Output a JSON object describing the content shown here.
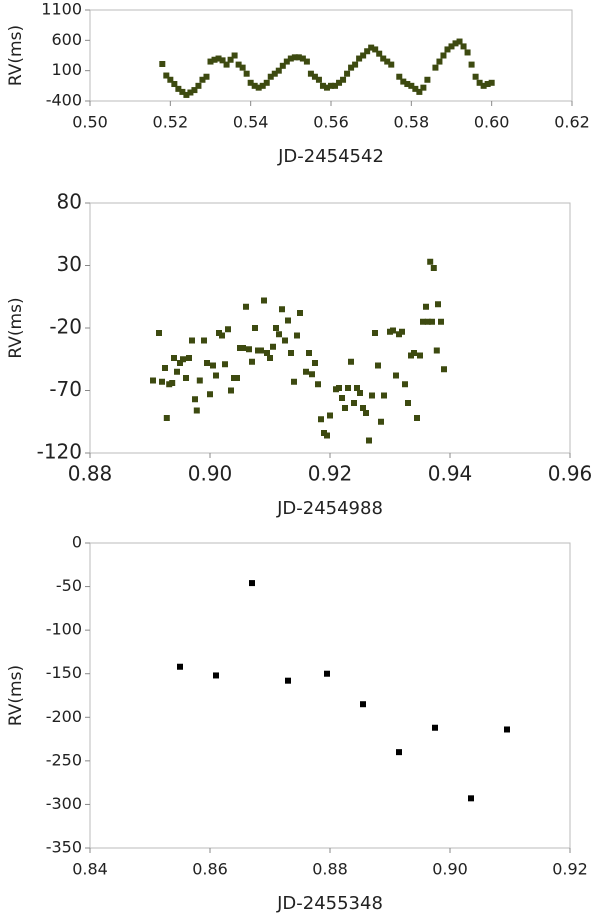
{
  "chart_data": [
    {
      "type": "scatter",
      "x_label": "JD-2454542",
      "y_label": "RV(ms)",
      "color": "#3d4a10",
      "xlim": [
        0.5,
        0.62
      ],
      "ylim": [
        -400,
        1100
      ],
      "xticks": [
        {
          "value": 0.5,
          "label": "0.50"
        },
        {
          "value": 0.52,
          "label": "0.52"
        },
        {
          "value": 0.54,
          "label": "0.54"
        },
        {
          "value": 0.56,
          "label": "0.56"
        },
        {
          "value": 0.58,
          "label": "0.58"
        },
        {
          "value": 0.6,
          "label": "0.60"
        },
        {
          "value": 0.62,
          "label": "0.62"
        }
      ],
      "yticks": [
        -400,
        100,
        600,
        1100
      ],
      "x": [
        0.518,
        0.519,
        0.52,
        0.521,
        0.522,
        0.523,
        0.524,
        0.525,
        0.526,
        0.527,
        0.528,
        0.529,
        0.53,
        0.531,
        0.532,
        0.533,
        0.534,
        0.535,
        0.536,
        0.537,
        0.538,
        0.539,
        0.54,
        0.541,
        0.542,
        0.543,
        0.544,
        0.545,
        0.546,
        0.547,
        0.548,
        0.549,
        0.55,
        0.551,
        0.552,
        0.553,
        0.554,
        0.555,
        0.556,
        0.557,
        0.558,
        0.559,
        0.56,
        0.561,
        0.562,
        0.563,
        0.564,
        0.565,
        0.566,
        0.567,
        0.568,
        0.569,
        0.57,
        0.571,
        0.572,
        0.573,
        0.574,
        0.575,
        0.577,
        0.578,
        0.579,
        0.58,
        0.581,
        0.582,
        0.583,
        0.584,
        0.586,
        0.587,
        0.588,
        0.589,
        0.59,
        0.591,
        0.592,
        0.593,
        0.594,
        0.595,
        0.596,
        0.597,
        0.598,
        0.599,
        0.6
      ],
      "values": [
        210,
        20,
        -50,
        -120,
        -200,
        -250,
        -300,
        -260,
        -220,
        -150,
        -50,
        0,
        250,
        280,
        300,
        270,
        200,
        280,
        350,
        200,
        150,
        50,
        -100,
        -150,
        -180,
        -150,
        -100,
        0,
        50,
        100,
        180,
        250,
        300,
        320,
        320,
        300,
        250,
        50,
        0,
        -50,
        -150,
        -180,
        -150,
        -150,
        -100,
        -50,
        50,
        150,
        200,
        300,
        350,
        420,
        480,
        450,
        380,
        300,
        250,
        200,
        0,
        -80,
        -120,
        -150,
        -200,
        -250,
        -180,
        -50,
        150,
        250,
        350,
        450,
        500,
        550,
        580,
        500,
        400,
        200,
        0,
        -100,
        -150,
        -120,
        -100
      ]
    },
    {
      "type": "scatter",
      "x_label": "JD-2454988",
      "y_label": "RV(ms)",
      "color": "#3d4a10",
      "xlim": [
        0.88,
        0.96
      ],
      "ylim": [
        -120,
        80
      ],
      "xticks": [
        {
          "value": 0.88,
          "label": "0.88"
        },
        {
          "value": 0.9,
          "label": "0.90"
        },
        {
          "value": 0.92,
          "label": "0.92"
        },
        {
          "value": 0.94,
          "label": "0.94"
        },
        {
          "value": 0.96,
          "label": "0.96"
        }
      ],
      "yticks": [
        -120,
        -70,
        -20,
        30,
        80
      ],
      "x": [
        0.8905,
        0.8915,
        0.892,
        0.8925,
        0.8928,
        0.8932,
        0.8937,
        0.894,
        0.8945,
        0.895,
        0.8955,
        0.896,
        0.8965,
        0.897,
        0.8975,
        0.8978,
        0.8983,
        0.899,
        0.8995,
        0.9,
        0.9005,
        0.901,
        0.9015,
        0.902,
        0.9025,
        0.903,
        0.9035,
        0.904,
        0.9045,
        0.905,
        0.9055,
        0.906,
        0.9065,
        0.907,
        0.9075,
        0.908,
        0.9085,
        0.909,
        0.9095,
        0.91,
        0.9105,
        0.911,
        0.9115,
        0.912,
        0.9125,
        0.913,
        0.9135,
        0.914,
        0.9145,
        0.915,
        0.916,
        0.9165,
        0.917,
        0.9175,
        0.918,
        0.9185,
        0.919,
        0.9195,
        0.92,
        0.921,
        0.9215,
        0.922,
        0.9225,
        0.923,
        0.9235,
        0.924,
        0.9245,
        0.925,
        0.9255,
        0.926,
        0.9265,
        0.927,
        0.9275,
        0.928,
        0.9285,
        0.929,
        0.93,
        0.9305,
        0.931,
        0.9315,
        0.932,
        0.9325,
        0.933,
        0.9335,
        0.934,
        0.9345,
        0.935,
        0.9355,
        0.936,
        0.9363,
        0.9367,
        0.937,
        0.9373,
        0.9378,
        0.938,
        0.9385,
        0.939
      ],
      "values": [
        -62,
        -24,
        -63,
        -52,
        -92,
        -65,
        -64,
        -44,
        -55,
        -48,
        -45,
        -60,
        -44,
        -30,
        -77,
        -86,
        -62,
        -30,
        -48,
        -73,
        -50,
        -58,
        -24,
        -26,
        -49,
        -21,
        -70,
        -60,
        -60,
        -36,
        -36,
        -3,
        -37,
        -47,
        -20,
        -38,
        -38,
        2,
        -40,
        -44,
        -35,
        -20,
        -25,
        -5,
        -30,
        -14,
        -40,
        -63,
        -26,
        -8,
        -55,
        -40,
        -57,
        -48,
        -65,
        -93,
        -104,
        -106,
        -90,
        -69,
        -68,
        -76,
        -84,
        -68,
        -47,
        -80,
        -68,
        -72,
        -84,
        -88,
        -110,
        -74,
        -24,
        -50,
        -95,
        -74,
        -23,
        -22,
        -58,
        -25,
        -23,
        -65,
        -80,
        -42,
        -40,
        -92,
        -42,
        -15,
        -3,
        -15,
        33,
        -15,
        28,
        -38,
        -1,
        -15,
        -53
      ]
    },
    {
      "type": "scatter",
      "x_label": "JD-2455348",
      "y_label": "RV(ms)",
      "color": "#000000",
      "xlim": [
        0.84,
        0.92
      ],
      "ylim": [
        -350,
        0
      ],
      "xticks": [
        {
          "value": 0.84,
          "label": "0.84"
        },
        {
          "value": 0.86,
          "label": "0.86"
        },
        {
          "value": 0.88,
          "label": "0.88"
        },
        {
          "value": 0.9,
          "label": "0.90"
        },
        {
          "value": 0.92,
          "label": "0.92"
        }
      ],
      "yticks": [
        -350,
        -300,
        -250,
        -200,
        -150,
        -100,
        -50,
        0
      ],
      "x": [
        0.855,
        0.861,
        0.867,
        0.873,
        0.8795,
        0.8855,
        0.8915,
        0.8975,
        0.9035,
        0.9095
      ],
      "values": [
        -142,
        -152,
        -46,
        -158,
        -150,
        -185,
        -240,
        -212,
        -293,
        -214
      ]
    }
  ]
}
